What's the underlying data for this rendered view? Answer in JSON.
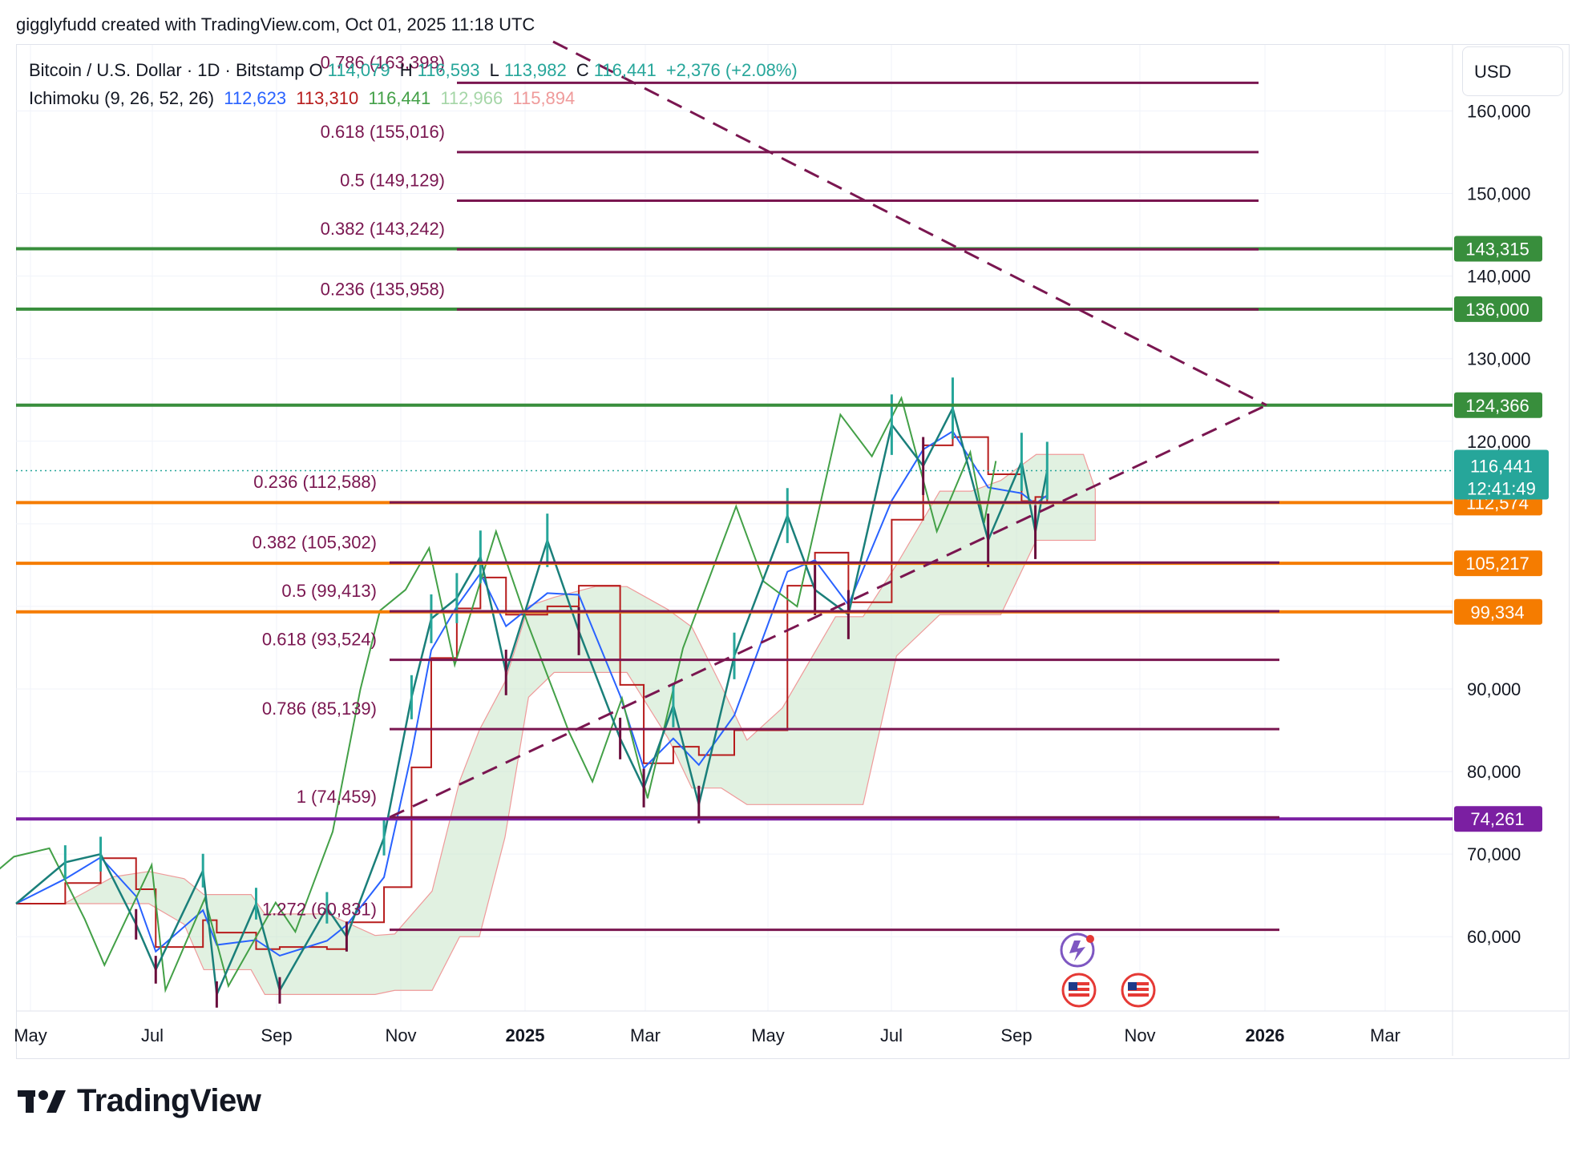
{
  "header": {
    "credit": "gigglyfudd created with TradingView.com, Oct 01, 2025 11:18 UTC"
  },
  "symbol": {
    "title": "Bitcoin / U.S. Dollar · 1D · Bitstamp",
    "open_label": "O",
    "open": "114,079",
    "high_label": "H",
    "high": "116,593",
    "low_label": "L",
    "low": "113,982",
    "close_label": "C",
    "close": "116,441",
    "change": "+2,376 (+2.08%)"
  },
  "indicator": {
    "name": "Ichimoku (9, 26, 52, 26)",
    "values": [
      "112,623",
      "113,310",
      "116,441",
      "112,966",
      "115,894"
    ],
    "colors": [
      "#2962ff",
      "#b71c1c",
      "#43a047",
      "#a5d6a7",
      "#ef9a9a"
    ]
  },
  "currency": "USD",
  "brand": "TradingView",
  "colors": {
    "fib": "#7a1650",
    "green_level": "#388e3c",
    "orange_level": "#f57c00",
    "purple_level": "#7b1fa2",
    "price_tag": "#26a69a",
    "candle_up": "#26a69a",
    "candle_down": "#6a0d3c"
  },
  "chart_data": {
    "type": "line",
    "x_ticks": [
      "May",
      "Jul",
      "Sep",
      "Nov",
      "2025",
      "Mar",
      "May",
      "Jul",
      "Sep",
      "Nov",
      "2026",
      "Mar"
    ],
    "y_ticks": [
      "160,000",
      "150,000",
      "140,000",
      "130,000",
      "120,000",
      "90,000",
      "80,000",
      "70,000",
      "60,000"
    ],
    "y_range": [
      51000,
      168000
    ],
    "current_price": {
      "value": 116441,
      "label": "116,441",
      "countdown": "12:41:49"
    },
    "horizontal_levels": [
      {
        "value": 143315,
        "label": "143,315",
        "color": "green"
      },
      {
        "value": 136000,
        "label": "136,000",
        "color": "green"
      },
      {
        "value": 124366,
        "label": "124,366",
        "color": "green"
      },
      {
        "value": 112574,
        "label": "112,574",
        "color": "orange"
      },
      {
        "value": 105217,
        "label": "105,217",
        "color": "orange"
      },
      {
        "value": 99334,
        "label": "99,334",
        "color": "orange"
      },
      {
        "value": 74261,
        "label": "74,261",
        "color": "purple"
      }
    ],
    "fib_upper": [
      {
        "label": "0.786 (163,398)",
        "value": 163398
      },
      {
        "label": "0.618 (155,016)",
        "value": 155016
      },
      {
        "label": "0.5 (149,129)",
        "value": 149129
      },
      {
        "label": "0.382 (143,242)",
        "value": 143242
      },
      {
        "label": "0.236 (135,958)",
        "value": 135958
      }
    ],
    "fib_lower": [
      {
        "label": "0.236 (112,588)",
        "value": 112588
      },
      {
        "label": "0.382 (105,302)",
        "value": 105302
      },
      {
        "label": "0.5 (99,413)",
        "value": 99413
      },
      {
        "label": "0.618 (93,524)",
        "value": 93524
      },
      {
        "label": "0.786 (85,139)",
        "value": 85139
      },
      {
        "label": "1 (74,459)",
        "value": 74459
      },
      {
        "label": "1.272 (60,831)",
        "value": 60831
      }
    ],
    "price_series": [
      [
        "2024-04-25",
        64000
      ],
      [
        "2024-05-20",
        69000
      ],
      [
        "2024-06-07",
        70000
      ],
      [
        "2024-06-25",
        61500
      ],
      [
        "2024-07-05",
        56000
      ],
      [
        "2024-07-29",
        68000
      ],
      [
        "2024-08-05",
        53000
      ],
      [
        "2024-08-25",
        64000
      ],
      [
        "2024-09-06",
        53500
      ],
      [
        "2024-09-30",
        63500
      ],
      [
        "2024-10-10",
        60000
      ],
      [
        "2024-10-29",
        72000
      ],
      [
        "2024-11-12",
        89000
      ],
      [
        "2024-11-22",
        98500
      ],
      [
        "2024-12-05",
        101000
      ],
      [
        "2024-12-17",
        106000
      ],
      [
        "2024-12-30",
        92000
      ],
      [
        "2025-01-20",
        108000
      ],
      [
        "2025-02-05",
        97000
      ],
      [
        "2025-02-26",
        84000
      ],
      [
        "2025-03-10",
        78000
      ],
      [
        "2025-03-25",
        88000
      ],
      [
        "2025-04-07",
        76000
      ],
      [
        "2025-04-25",
        94000
      ],
      [
        "2025-05-22",
        111000
      ],
      [
        "2025-06-05",
        102000
      ],
      [
        "2025-06-22",
        99000
      ],
      [
        "2025-07-14",
        122000
      ],
      [
        "2025-07-30",
        117000
      ],
      [
        "2025-08-14",
        124000
      ],
      [
        "2025-09-01",
        108000
      ],
      [
        "2025-09-18",
        117500
      ],
      [
        "2025-09-25",
        109000
      ],
      [
        "2025-10-01",
        116441
      ]
    ]
  }
}
